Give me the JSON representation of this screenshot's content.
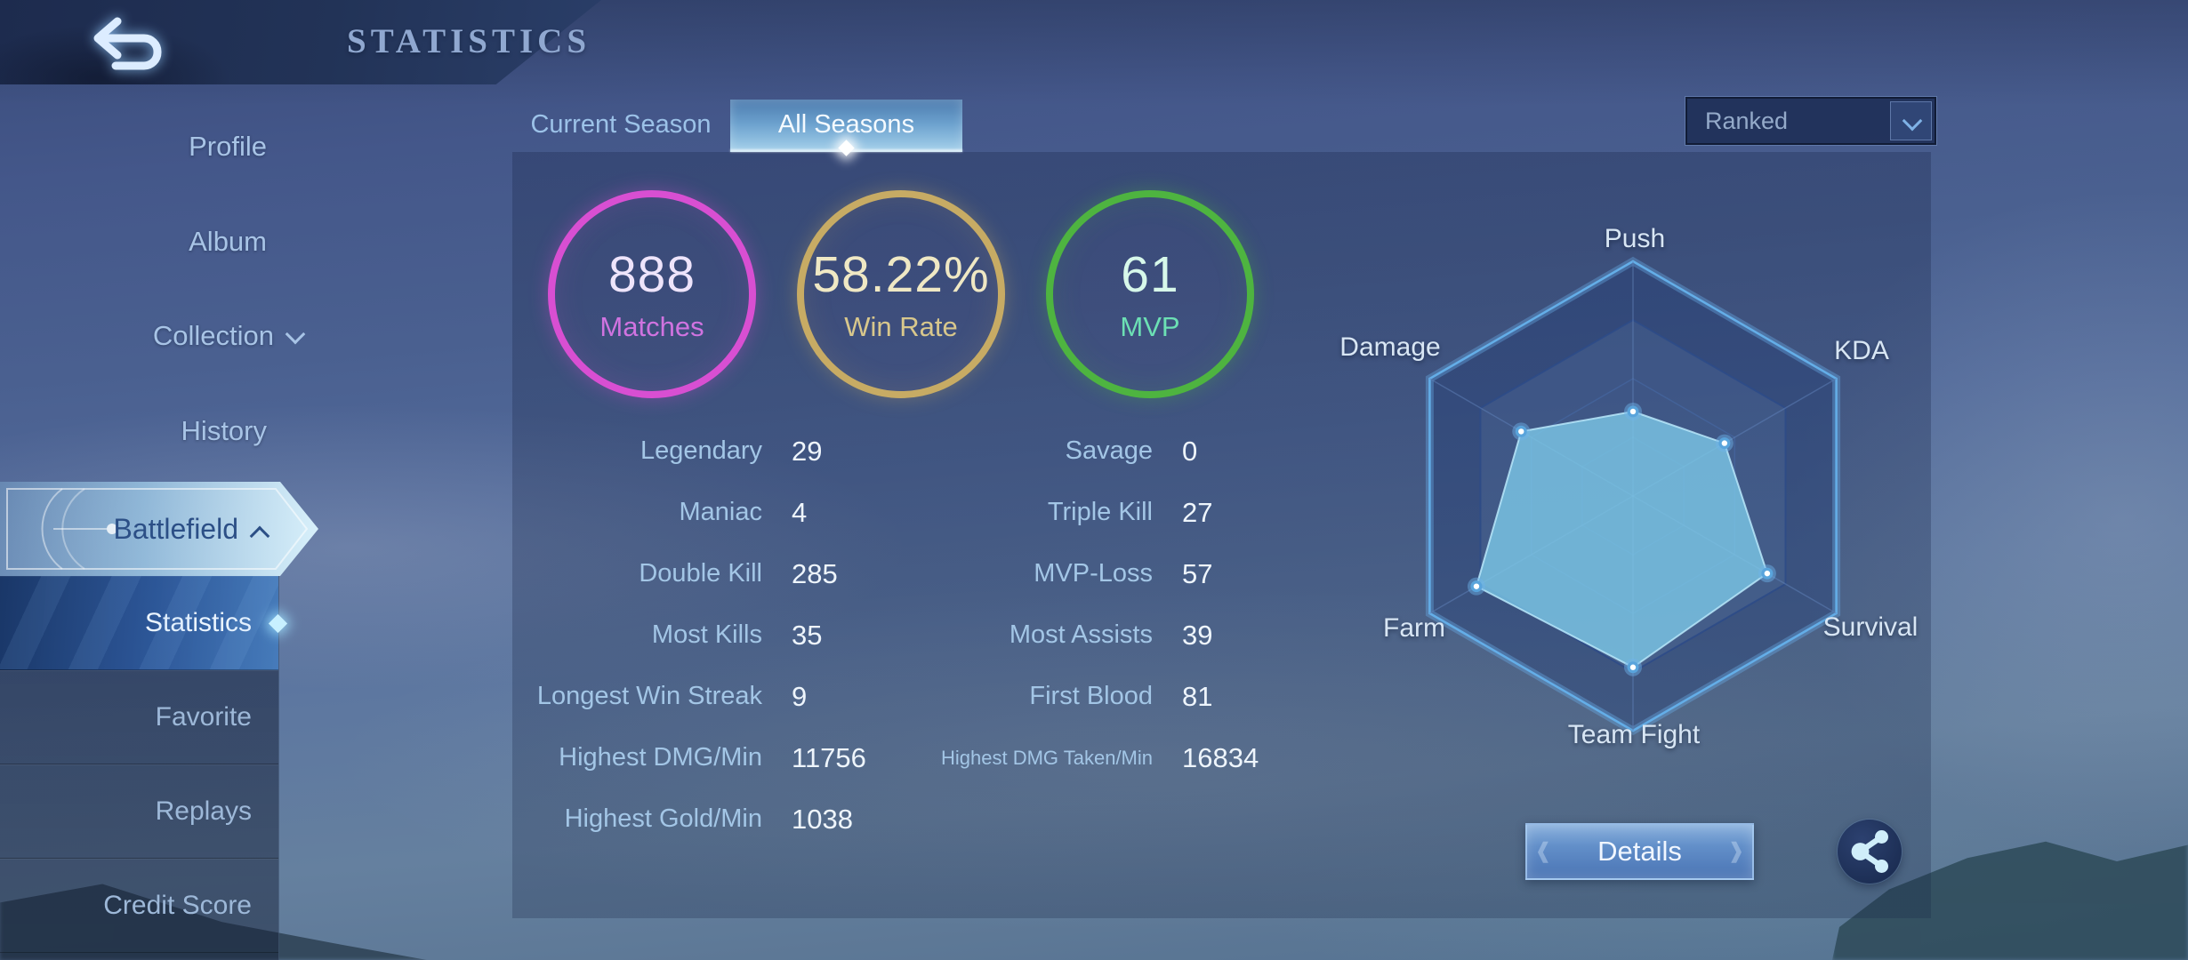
{
  "header": {
    "title": "STATISTICS",
    "back_icon": "back-arrow"
  },
  "sidebar": {
    "main_items": [
      {
        "label": "Profile"
      },
      {
        "label": "Album"
      },
      {
        "label": "Collection",
        "chevron": "down"
      },
      {
        "label": "History"
      },
      {
        "label": "Battlefield",
        "chevron": "up",
        "active": true
      }
    ],
    "submenu_items": [
      {
        "label": "Statistics",
        "selected": true
      },
      {
        "label": "Favorite"
      },
      {
        "label": "Replays"
      },
      {
        "label": "Credit Score"
      }
    ]
  },
  "tabs": [
    {
      "label": "Current Season",
      "active": false
    },
    {
      "label": "All Seasons",
      "active": true
    }
  ],
  "filter": {
    "value": "Ranked",
    "icon": "chevron-down-icon"
  },
  "summary": [
    {
      "value": "888",
      "label": "Matches",
      "ring_color": "#d84fd2",
      "value_color": "#eee4fb",
      "label_color": "#d073e0"
    },
    {
      "value": "58.22%",
      "label": "Win Rate",
      "ring_color": "#c7ab64",
      "value_color": "#efe8c4",
      "label_color": "#d8c78c"
    },
    {
      "value": "61",
      "label": "MVP",
      "ring_color": "#4eb440",
      "value_color": "#d7f8ea",
      "label_color": "#6ce0b4"
    }
  ],
  "stats_left": {
    "rows": [
      {
        "label": "Legendary",
        "value": "29"
      },
      {
        "label": "Maniac",
        "value": "4"
      },
      {
        "label": "Double Kill",
        "value": "285"
      },
      {
        "label": "Most Kills",
        "value": "35"
      },
      {
        "label": "Longest Win Streak",
        "value": "9"
      },
      {
        "label": "Highest DMG/Min",
        "value": "11756"
      },
      {
        "label": "Highest Gold/Min",
        "value": "1038"
      }
    ]
  },
  "stats_right": {
    "rows": [
      {
        "label": "Savage",
        "value": "0"
      },
      {
        "label": "Triple Kill",
        "value": "27"
      },
      {
        "label": "MVP-Loss",
        "value": "57"
      },
      {
        "label": "Most Assists",
        "value": "39"
      },
      {
        "label": "First Blood",
        "value": "81"
      },
      {
        "label": "Highest DMG Taken/Min",
        "value": "16834",
        "small": true
      }
    ]
  },
  "radar": {
    "axes": [
      "Push",
      "KDA",
      "Survival",
      "Team Fight",
      "Farm",
      "Damage"
    ],
    "values": [
      0.36,
      0.45,
      0.66,
      0.73,
      0.77,
      0.55
    ],
    "outer_radius": 264,
    "grid_color": "#64aee8",
    "fill_color": "rgba(126,202,233,0.78)"
  },
  "chart_data": {
    "type": "radar",
    "categories": [
      "Push",
      "KDA",
      "Survival",
      "Team Fight",
      "Farm",
      "Damage"
    ],
    "values": [
      0.36,
      0.45,
      0.66,
      0.73,
      0.77,
      0.55
    ],
    "title": "Battlefield performance radar",
    "value_range": [
      0,
      1
    ],
    "grid_rings": [
      1.0,
      0.75,
      0.5,
      0.25
    ],
    "legend": "none"
  },
  "footer": {
    "details_label": "Details",
    "share_icon": "share-nodes"
  }
}
